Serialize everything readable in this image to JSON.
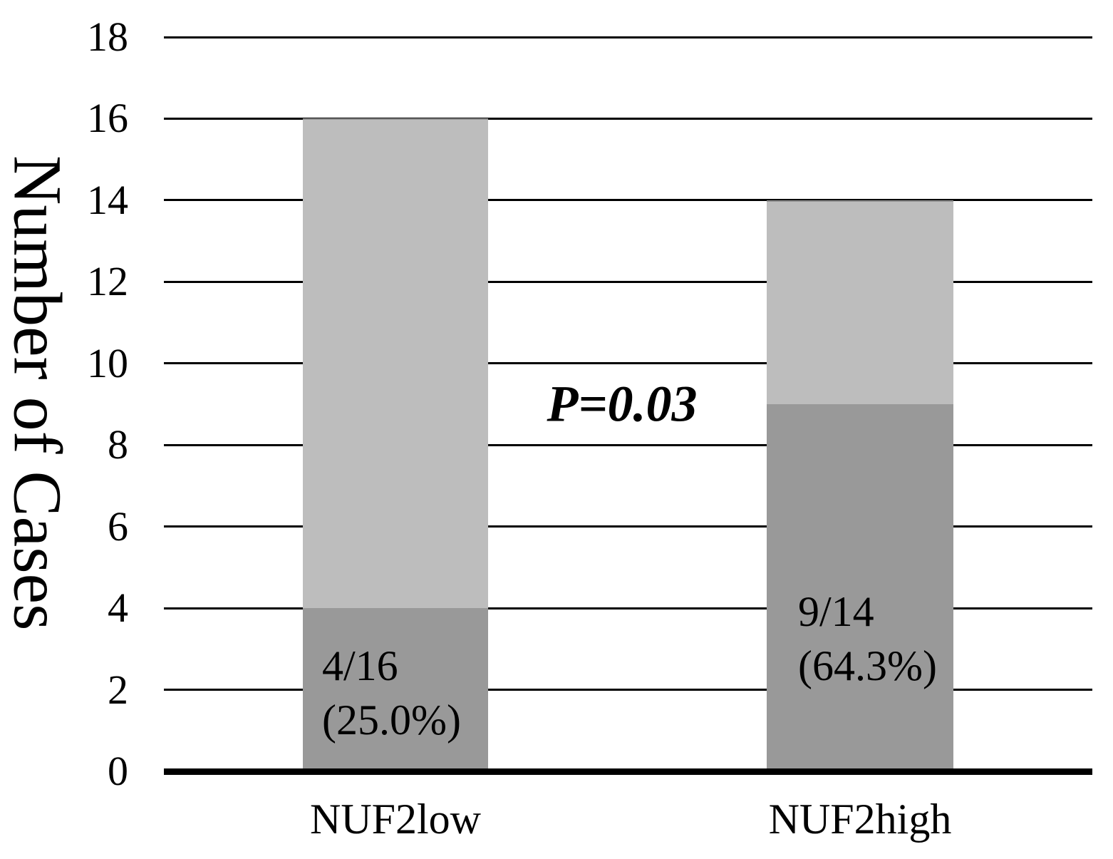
{
  "chart_data": {
    "type": "bar",
    "stacked": true,
    "title": "",
    "ylabel": "Number of Cases",
    "xlabel": "",
    "categories": [
      "NUF2low",
      "NUF2high"
    ],
    "series": [
      {
        "name": "dark-gray-lower-segment",
        "color": "#999999",
        "values": [
          4,
          9
        ]
      },
      {
        "name": "light-gray-upper-segment",
        "color": "#bdbdbd",
        "values": [
          12,
          5
        ]
      }
    ],
    "stack_totals": [
      16,
      14
    ],
    "bar_labels": [
      {
        "line1": "4/16",
        "line2": "(25.0%)"
      },
      {
        "line1": "9/14",
        "line2": "(64.3%)"
      }
    ],
    "annotation": "P=0.03",
    "yticks": [
      0,
      2,
      4,
      6,
      8,
      10,
      12,
      14,
      16,
      18
    ],
    "ylim": [
      0,
      18
    ],
    "grid": true,
    "legend": "none",
    "background": "#ffffff",
    "axis_color": "#000000",
    "text_color": "#000000"
  }
}
